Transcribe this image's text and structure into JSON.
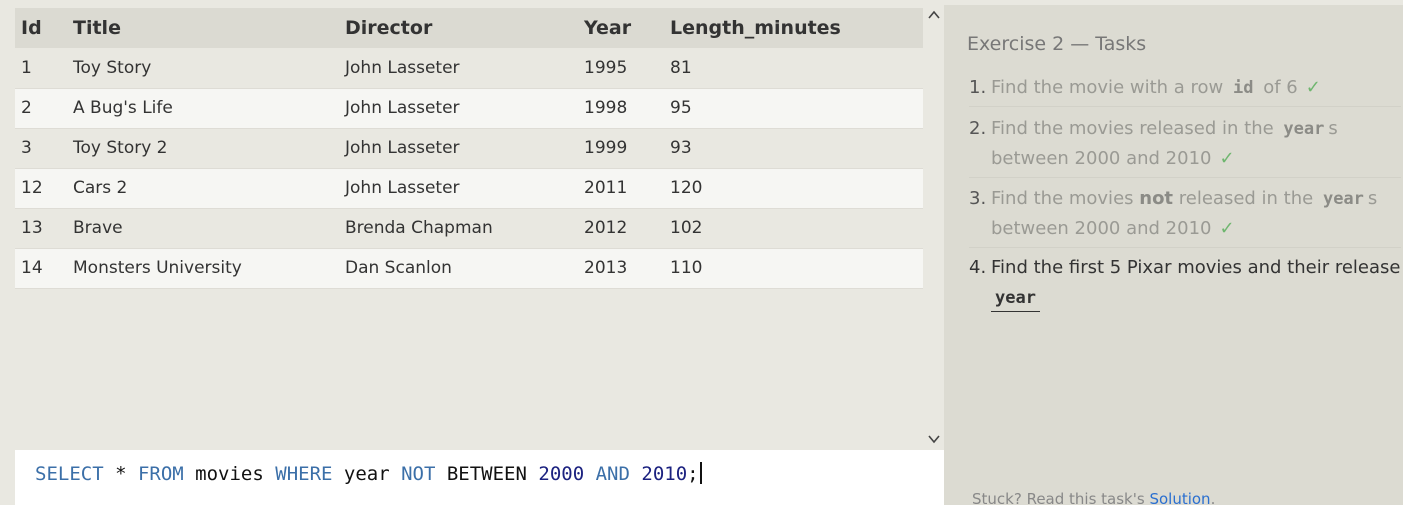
{
  "table": {
    "columns": [
      "Id",
      "Title",
      "Director",
      "Year",
      "Length_minutes"
    ],
    "rows": [
      [
        "1",
        "Toy Story",
        "John Lasseter",
        "1995",
        "81"
      ],
      [
        "2",
        "A Bug's Life",
        "John Lasseter",
        "1998",
        "95"
      ],
      [
        "3",
        "Toy Story 2",
        "John Lasseter",
        "1999",
        "93"
      ],
      [
        "12",
        "Cars 2",
        "John Lasseter",
        "2011",
        "120"
      ],
      [
        "13",
        "Brave",
        "Brenda Chapman",
        "2012",
        "102"
      ],
      [
        "14",
        "Monsters University",
        "Dan Scanlon",
        "2013",
        "110"
      ]
    ]
  },
  "query": {
    "tokens": [
      {
        "text": "SELECT",
        "type": "kw"
      },
      {
        "text": " * ",
        "type": "plain"
      },
      {
        "text": "FROM",
        "type": "kw"
      },
      {
        "text": " movies ",
        "type": "plain"
      },
      {
        "text": "WHERE",
        "type": "kw"
      },
      {
        "text": " year ",
        "type": "plain"
      },
      {
        "text": "NOT",
        "type": "kw"
      },
      {
        "text": " BETWEEN ",
        "type": "plain"
      },
      {
        "text": "2000",
        "type": "num"
      },
      {
        "text": " ",
        "type": "plain"
      },
      {
        "text": "AND",
        "type": "kw"
      },
      {
        "text": " ",
        "type": "plain"
      },
      {
        "text": "2010",
        "type": "num"
      },
      {
        "text": ";",
        "type": "plain"
      }
    ]
  },
  "panel": {
    "title": "Exercise 2 — Tasks",
    "tasks": [
      {
        "number": "1.",
        "before": "Find the movie with a row ",
        "code": "id",
        "after": " of 6",
        "check": "✓"
      },
      {
        "number": "2.",
        "before": "Find the movies released in the ",
        "code": "year",
        "after": "s between 2000 and 2010",
        "check": "✓"
      },
      {
        "number": "3.",
        "before_pre": "Find the movies ",
        "bold": "not",
        "before": " released in the ",
        "code": "year",
        "after": "s between 2000 and 2010",
        "check": "✓"
      },
      {
        "number": "4.",
        "before": "Find the first 5 Pixar movies and their release ",
        "code": "year",
        "after": "",
        "check": ""
      }
    ],
    "hint_prefix": "Stuck? Read this task's ",
    "hint_link": "Solution",
    "hint_suffix": "."
  },
  "icons": {
    "scroll_up": "chevron-up-icon",
    "scroll_down": "chevron-down-icon"
  }
}
